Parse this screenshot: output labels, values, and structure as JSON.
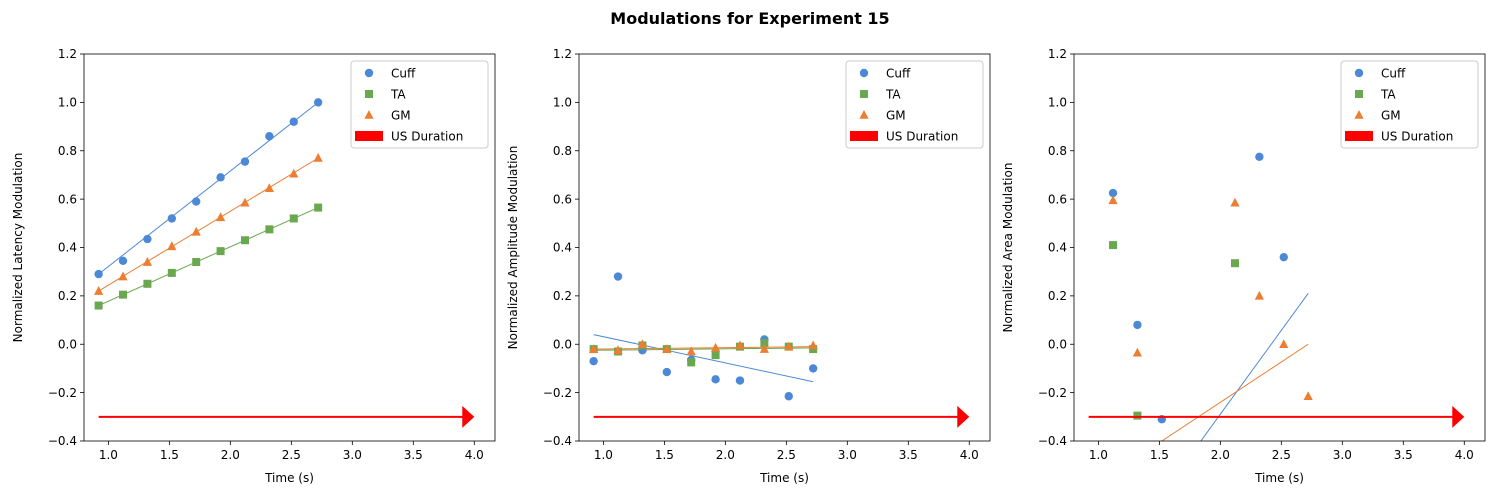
{
  "figure": {
    "title": "Modulations for Experiment 15"
  },
  "colors": {
    "Cuff": "#4c88d6",
    "TA": "#6aa84f",
    "GM": "#ed7d31",
    "US Duration": "#ff0000"
  },
  "chart_data": [
    {
      "type": "scatter",
      "id": "latency",
      "xlabel": "Time (s)",
      "ylabel": "Normalized Latency Modulation",
      "xlim": [
        0.8,
        4.17
      ],
      "ylim": [
        -0.4,
        1.2
      ],
      "xticks": [
        1.0,
        1.5,
        2.0,
        2.5,
        3.0,
        3.5,
        4.0
      ],
      "xtick_labels": [
        "1.0",
        "1.5",
        "2.0",
        "2.5",
        "3.0",
        "3.5",
        "4.0"
      ],
      "yticks": [
        -0.4,
        -0.2,
        0.0,
        0.2,
        0.4,
        0.6,
        0.8,
        1.0,
        1.2
      ],
      "ytick_labels": [
        "−0.4",
        "−0.2",
        "0.0",
        "0.2",
        "0.4",
        "0.6",
        "0.8",
        "1.0",
        "1.2"
      ],
      "legend": {
        "position": "top-right",
        "entries": [
          "Cuff",
          "TA",
          "GM",
          "US Duration"
        ]
      },
      "series": [
        {
          "name": "Cuff",
          "marker": "circle",
          "x": [
            0.92,
            1.12,
            1.32,
            1.52,
            1.72,
            1.92,
            2.12,
            2.32,
            2.52,
            2.72
          ],
          "y": [
            0.29,
            0.345,
            0.435,
            0.52,
            0.59,
            0.69,
            0.755,
            0.86,
            0.92,
            1.0
          ],
          "fit": [
            [
              0.92,
              0.29
            ],
            [
              2.72,
              1.0
            ]
          ]
        },
        {
          "name": "TA",
          "marker": "square",
          "x": [
            0.92,
            1.12,
            1.32,
            1.52,
            1.72,
            1.92,
            2.12,
            2.32,
            2.52,
            2.72
          ],
          "y": [
            0.16,
            0.205,
            0.25,
            0.295,
            0.34,
            0.385,
            0.43,
            0.475,
            0.52,
            0.565
          ],
          "fit": [
            [
              0.92,
              0.16
            ],
            [
              2.72,
              0.565
            ]
          ]
        },
        {
          "name": "GM",
          "marker": "triangle",
          "x": [
            0.92,
            1.12,
            1.32,
            1.52,
            1.72,
            1.92,
            2.12,
            2.32,
            2.52,
            2.72
          ],
          "y": [
            0.22,
            0.28,
            0.34,
            0.405,
            0.465,
            0.525,
            0.585,
            0.645,
            0.705,
            0.77
          ],
          "fit": [
            [
              0.92,
              0.22
            ],
            [
              2.72,
              0.77
            ]
          ]
        }
      ],
      "us_duration": {
        "x_start": 0.92,
        "x_end": 4.0,
        "y": -0.3
      }
    },
    {
      "type": "scatter",
      "id": "amplitude",
      "xlabel": "Time (s)",
      "ylabel": "Normalized Amplitude Modulation",
      "xlim": [
        0.8,
        4.17
      ],
      "ylim": [
        -0.4,
        1.2
      ],
      "xticks": [
        1.0,
        1.5,
        2.0,
        2.5,
        3.0,
        3.5,
        4.0
      ],
      "xtick_labels": [
        "1.0",
        "1.5",
        "2.0",
        "2.5",
        "3.0",
        "3.5",
        "4.0"
      ],
      "yticks": [
        -0.4,
        -0.2,
        0.0,
        0.2,
        0.4,
        0.6,
        0.8,
        1.0,
        1.2
      ],
      "ytick_labels": [
        "−0.4",
        "−0.2",
        "0.0",
        "0.2",
        "0.4",
        "0.6",
        "0.8",
        "1.0",
        "1.2"
      ],
      "legend": {
        "position": "top-right",
        "entries": [
          "Cuff",
          "TA",
          "GM",
          "US Duration"
        ]
      },
      "series": [
        {
          "name": "Cuff",
          "marker": "circle",
          "x": [
            0.92,
            1.12,
            1.32,
            1.52,
            1.72,
            1.92,
            2.12,
            2.32,
            2.52,
            2.72
          ],
          "y": [
            -0.07,
            0.28,
            -0.025,
            -0.115,
            -0.065,
            -0.145,
            -0.15,
            0.02,
            -0.215,
            -0.1
          ],
          "fit": [
            [
              0.92,
              0.04
            ],
            [
              2.72,
              -0.155
            ]
          ]
        },
        {
          "name": "TA",
          "marker": "square",
          "x": [
            0.92,
            1.12,
            1.32,
            1.52,
            1.72,
            1.92,
            2.12,
            2.32,
            2.52,
            2.72
          ],
          "y": [
            -0.02,
            -0.03,
            -0.005,
            -0.02,
            -0.075,
            -0.045,
            -0.01,
            0.005,
            -0.01,
            -0.02
          ],
          "fit": [
            [
              0.92,
              -0.025
            ],
            [
              2.72,
              -0.015
            ]
          ]
        },
        {
          "name": "GM",
          "marker": "triangle",
          "x": [
            0.92,
            1.12,
            1.32,
            1.52,
            1.72,
            1.92,
            2.12,
            2.32,
            2.52,
            2.72
          ],
          "y": [
            -0.02,
            -0.025,
            0.0,
            -0.02,
            -0.03,
            -0.015,
            -0.005,
            -0.02,
            -0.01,
            -0.005
          ],
          "fit": [
            [
              0.92,
              -0.02
            ],
            [
              2.72,
              -0.01
            ]
          ]
        }
      ],
      "us_duration": {
        "x_start": 0.92,
        "x_end": 4.0,
        "y": -0.3
      }
    },
    {
      "type": "scatter",
      "id": "area",
      "xlabel": "Time (s)",
      "ylabel": "Normalized Area Modulation",
      "xlim": [
        0.8,
        4.17
      ],
      "ylim": [
        -0.4,
        1.2
      ],
      "xticks": [
        1.0,
        1.5,
        2.0,
        2.5,
        3.0,
        3.5,
        4.0
      ],
      "xtick_labels": [
        "1.0",
        "1.5",
        "2.0",
        "2.5",
        "3.0",
        "3.5",
        "4.0"
      ],
      "yticks": [
        -0.4,
        -0.2,
        0.0,
        0.2,
        0.4,
        0.6,
        0.8,
        1.0,
        1.2
      ],
      "ytick_labels": [
        "−0.4",
        "−0.2",
        "0.0",
        "0.2",
        "0.4",
        "0.6",
        "0.8",
        "1.0",
        "1.2"
      ],
      "legend": {
        "position": "top-right",
        "entries": [
          "Cuff",
          "TA",
          "GM",
          "US Duration"
        ]
      },
      "series": [
        {
          "name": "Cuff",
          "marker": "circle",
          "x": [
            1.12,
            1.32,
            1.52,
            2.32,
            2.52
          ],
          "y": [
            0.625,
            0.08,
            -0.31,
            0.775,
            0.36
          ],
          "fit": [
            [
              1.84,
              -0.4
            ],
            [
              2.72,
              0.21
            ]
          ]
        },
        {
          "name": "TA",
          "marker": "square",
          "x": [
            1.12,
            1.32,
            2.12
          ],
          "y": [
            0.41,
            -0.295,
            0.335
          ],
          "fit": []
        },
        {
          "name": "GM",
          "marker": "triangle",
          "x": [
            1.12,
            1.32,
            2.12,
            2.32,
            2.52,
            2.72
          ],
          "y": [
            0.595,
            -0.035,
            0.585,
            0.2,
            0.0,
            -0.215
          ],
          "fit": [
            [
              1.52,
              -0.4
            ],
            [
              2.72,
              0.0
            ]
          ]
        }
      ],
      "us_duration": {
        "x_start": 0.92,
        "x_end": 4.0,
        "y": -0.3
      }
    }
  ]
}
